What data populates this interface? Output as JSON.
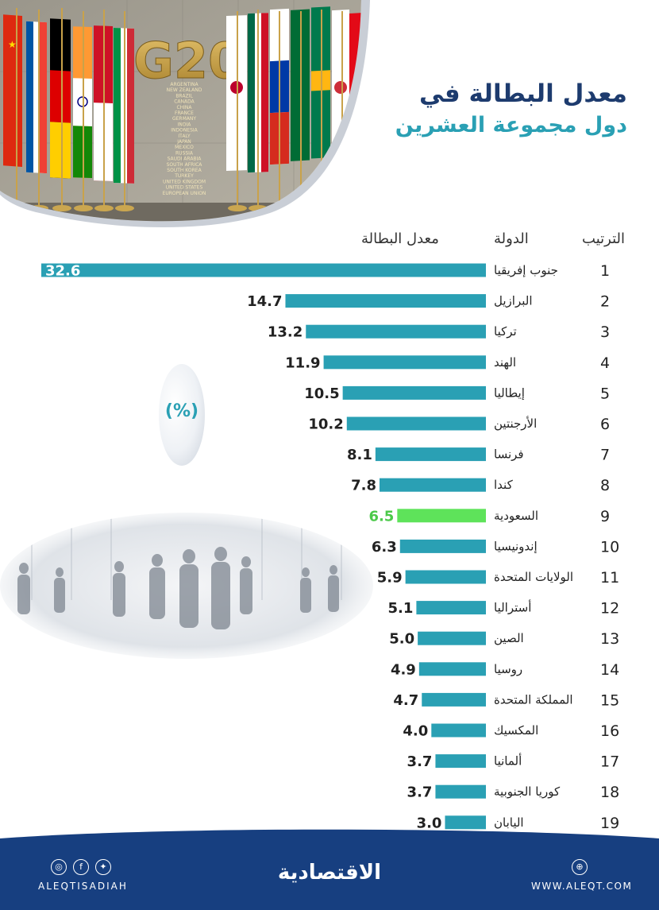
{
  "title": {
    "line1": "معدل البطالة في",
    "line2": "دول مجموعة العشرين"
  },
  "headers": {
    "rank": "الترتيب",
    "country": "الدولة",
    "rate": "معدل البطالة"
  },
  "unit_label": "(%)",
  "hero": {
    "sign_text": "G20",
    "sign_countries": [
      "ARGENTINA",
      "NEW ZEALAND",
      "BRAZIL",
      "CANADA",
      "CHINA",
      "FRANCE",
      "GERMANY",
      "INDIA",
      "INDONESIA",
      "ITALY",
      "JAPAN",
      "MEXICO",
      "RUSSIA",
      "SAUDI ARABIA",
      "SOUTH AFRICA",
      "SOUTH KOREA",
      "TURKEY",
      "UNITED KINGDOM",
      "UNITED STATES",
      "EUROPEAN UNION"
    ]
  },
  "colors": {
    "bar": "#2aa0b4",
    "highlight_bar": "#5ee35a",
    "highlight_text": "#4cc94a",
    "title_dark": "#1d3b6e",
    "title_accent": "#2aa0b4",
    "footer": "#173f80"
  },
  "chart_data": {
    "type": "bar",
    "orientation": "horizontal",
    "highlight": "السعودية",
    "categories": [
      "جنوب إفريقيا",
      "البرازيل",
      "تركيا",
      "الهند",
      "إيطاليا",
      "الأرجنتين",
      "فرنسا",
      "كندا",
      "السعودية",
      "إندونيسيا",
      "الولايات المتحدة",
      "أستراليا",
      "الصين",
      "روسيا",
      "المملكة المتحدة",
      "المكسيك",
      "ألمانيا",
      "كوريا الجنوبية",
      "اليابان"
    ],
    "ranks": [
      "1",
      "2",
      "3",
      "4",
      "5",
      "6",
      "7",
      "8",
      "9",
      "10",
      "11",
      "12",
      "13",
      "14",
      "15",
      "16",
      "17",
      "18",
      "19"
    ],
    "values": [
      32.6,
      14.7,
      13.2,
      11.9,
      10.5,
      10.2,
      8.1,
      7.8,
      6.5,
      6.3,
      5.9,
      5.1,
      5.0,
      4.9,
      4.7,
      4.0,
      3.7,
      3.7,
      3.0
    ],
    "value_labels": [
      "32.6",
      "14.7",
      "13.2",
      "11.9",
      "10.5",
      "10.2",
      "8.1",
      "7.8",
      "6.5",
      "6.3",
      "5.9",
      "5.1",
      "5.0",
      "4.9",
      "4.7",
      "4.0",
      "3.7",
      "3.7",
      "3.0"
    ]
  },
  "footer": {
    "handle": "ALEQTISADIAH",
    "website": "WWW.ALEQT.COM",
    "logo": "الاقتصادية",
    "icons": [
      "instagram-icon",
      "facebook-icon",
      "twitter-icon",
      "globe-icon"
    ]
  }
}
